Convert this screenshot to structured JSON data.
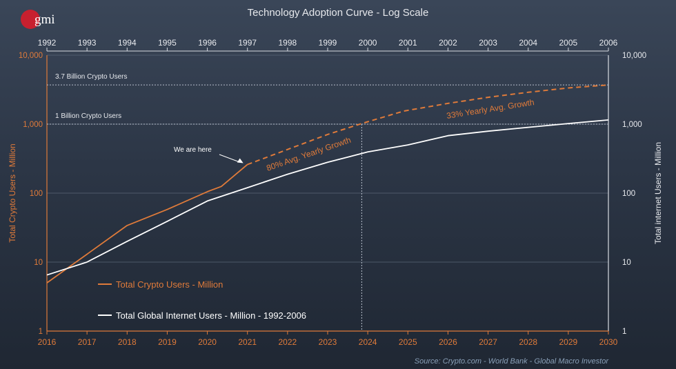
{
  "logo": {
    "text": "gmi",
    "color": "#c8202f"
  },
  "chart_data": {
    "type": "line",
    "title": "Technology Adoption Curve - Log Scale",
    "scale": "log",
    "ylim": [
      1,
      10000
    ],
    "y_ticks": [
      "1",
      "10",
      "100",
      "1,000",
      "10,000"
    ],
    "ylabel_left": "Total Crypto Users - Million",
    "ylabel_right": "Total internet Users - Million",
    "x_bottom": [
      "2016",
      "2017",
      "2018",
      "2019",
      "2020",
      "2021",
      "2022",
      "2023",
      "2024",
      "2025",
      "2026",
      "2027",
      "2028",
      "2029",
      "2030"
    ],
    "x_top": [
      "1992",
      "1993",
      "1994",
      "1995",
      "1996",
      "1997",
      "1998",
      "1999",
      "2000",
      "2001",
      "2002",
      "2003",
      "2004",
      "2005",
      "2006"
    ],
    "series": [
      {
        "name": "Total Crypto Users - Million",
        "color": "#e07b3a",
        "x": [
          2016,
          2017,
          2018,
          2019,
          2020,
          2020.35,
          2021
        ],
        "y": [
          5,
          13,
          34,
          58,
          105,
          125,
          260
        ]
      },
      {
        "name": "Crypto projection",
        "color": "#e07b3a",
        "dashed": true,
        "x": [
          2021,
          2022,
          2023,
          2023.85,
          2024.9,
          2026,
          2027,
          2028,
          2029,
          2030
        ],
        "y": [
          260,
          430,
          710,
          1020,
          1550,
          2000,
          2450,
          2900,
          3350,
          3700
        ]
      },
      {
        "name": "Total Global Internet Users - Million - 1992-2006",
        "color": "#ffffff",
        "x": [
          2016,
          2017,
          2018,
          2019,
          2020,
          2021,
          2022,
          2023,
          2024,
          2025,
          2026,
          2027,
          2028,
          2029,
          2030
        ],
        "y": [
          6.5,
          10,
          20,
          39,
          77,
          120,
          188,
          280,
          395,
          500,
          680,
          790,
          900,
          1020,
          1150
        ]
      }
    ],
    "legend": [
      {
        "label": "Total Crypto Users - Million",
        "color": "#e07b3a"
      },
      {
        "label": "Total Global Internet Users - Million - 1992-2006",
        "color": "#ffffff"
      }
    ],
    "legend_placement": "bottom-left",
    "reference_lines": [
      {
        "value": 3700,
        "label": "3.7 Billion Crypto Users"
      },
      {
        "value": 1000,
        "label": "1 Billion Crypto Users"
      }
    ],
    "vertical_marker": {
      "x": 2023.85,
      "value": 1000
    },
    "annotations": [
      {
        "text": "We are here",
        "x": 2021,
        "y": 260
      },
      {
        "text": "80% Avg. Yearly Growth",
        "color": "#e07b3a"
      },
      {
        "text": "33% Yearly Avg. Growth",
        "color": "#e07b3a"
      }
    ],
    "grid": true,
    "source": "Source:   Crypto.com - World Bank - Global Macro Investor"
  }
}
